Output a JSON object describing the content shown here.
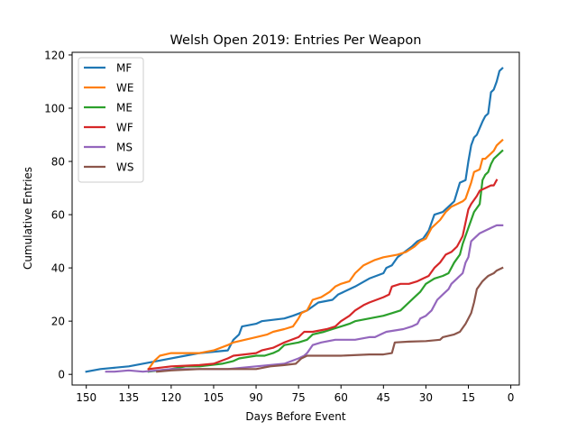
{
  "chart_data": {
    "type": "line",
    "title": "Welsh Open 2019: Entries Per Weapon",
    "xlabel": "Days Before Event",
    "ylabel": "Cumulative Entries",
    "xlim": [
      155,
      -3
    ],
    "ylim": [
      -4,
      121
    ],
    "x_ticks": [
      150,
      135,
      120,
      105,
      90,
      75,
      60,
      45,
      30,
      15,
      0
    ],
    "y_ticks": [
      0,
      20,
      40,
      60,
      80,
      100,
      120
    ],
    "grid": false,
    "legend_position": "top-left",
    "series": [
      {
        "name": "MF",
        "color": "#1f77b4",
        "points": [
          [
            150,
            1
          ],
          [
            145,
            2
          ],
          [
            135,
            3
          ],
          [
            125,
            5
          ],
          [
            115,
            7
          ],
          [
            110,
            8
          ],
          [
            100,
            9
          ],
          [
            98,
            13
          ],
          [
            96,
            15
          ],
          [
            95,
            18
          ],
          [
            90,
            19
          ],
          [
            88,
            20
          ],
          [
            80,
            21
          ],
          [
            77,
            22
          ],
          [
            72,
            24
          ],
          [
            68,
            27
          ],
          [
            63,
            28
          ],
          [
            61,
            30
          ],
          [
            55,
            33
          ],
          [
            50,
            36
          ],
          [
            45,
            38
          ],
          [
            44,
            40
          ],
          [
            42,
            41
          ],
          [
            40,
            44
          ],
          [
            35,
            48
          ],
          [
            33,
            50
          ],
          [
            31,
            51
          ],
          [
            29,
            54
          ],
          [
            27,
            60
          ],
          [
            24,
            61
          ],
          [
            22,
            63
          ],
          [
            20,
            65
          ],
          [
            18,
            72
          ],
          [
            16,
            73
          ],
          [
            15,
            80
          ],
          [
            14,
            86
          ],
          [
            13,
            89
          ],
          [
            12,
            90
          ],
          [
            10,
            95
          ],
          [
            9,
            97
          ],
          [
            8,
            98
          ],
          [
            7,
            106
          ],
          [
            6,
            107
          ],
          [
            5,
            110
          ],
          [
            4,
            114
          ],
          [
            3,
            115
          ]
        ]
      },
      {
        "name": "WE",
        "color": "#ff7f0e",
        "points": [
          [
            128,
            2
          ],
          [
            126,
            5
          ],
          [
            124,
            7
          ],
          [
            120,
            8
          ],
          [
            110,
            8
          ],
          [
            105,
            9
          ],
          [
            100,
            11
          ],
          [
            98,
            12
          ],
          [
            90,
            14
          ],
          [
            86,
            15
          ],
          [
            84,
            16
          ],
          [
            80,
            17
          ],
          [
            77,
            18
          ],
          [
            75,
            21
          ],
          [
            74,
            23
          ],
          [
            72,
            24
          ],
          [
            70,
            28
          ],
          [
            67,
            29
          ],
          [
            64,
            31
          ],
          [
            62,
            33
          ],
          [
            60,
            34
          ],
          [
            57,
            35
          ],
          [
            55,
            38
          ],
          [
            52,
            41
          ],
          [
            48,
            43
          ],
          [
            45,
            44
          ],
          [
            40,
            45
          ],
          [
            37,
            46
          ],
          [
            34,
            48
          ],
          [
            32,
            50
          ],
          [
            30,
            51
          ],
          [
            28,
            55
          ],
          [
            25,
            58
          ],
          [
            23,
            61
          ],
          [
            21,
            63
          ],
          [
            17,
            65
          ],
          [
            16,
            66
          ],
          [
            14,
            72
          ],
          [
            13,
            76
          ],
          [
            11,
            77
          ],
          [
            10,
            81
          ],
          [
            9,
            81
          ],
          [
            7,
            83
          ],
          [
            6,
            84
          ],
          [
            5,
            86
          ],
          [
            3,
            88
          ]
        ]
      },
      {
        "name": "ME",
        "color": "#2ca02c",
        "points": [
          [
            128,
            1
          ],
          [
            120,
            2
          ],
          [
            115,
            3
          ],
          [
            110,
            3
          ],
          [
            102,
            4
          ],
          [
            98,
            5
          ],
          [
            96,
            6
          ],
          [
            90,
            7
          ],
          [
            87,
            7
          ],
          [
            84,
            8
          ],
          [
            82,
            9
          ],
          [
            80,
            11
          ],
          [
            75,
            12
          ],
          [
            72,
            13
          ],
          [
            70,
            15
          ],
          [
            66,
            16
          ],
          [
            63,
            17
          ],
          [
            60,
            18
          ],
          [
            57,
            19
          ],
          [
            55,
            20
          ],
          [
            50,
            21
          ],
          [
            45,
            22
          ],
          [
            42,
            23
          ],
          [
            39,
            24
          ],
          [
            37,
            26
          ],
          [
            34,
            29
          ],
          [
            32,
            31
          ],
          [
            30,
            34
          ],
          [
            27,
            36
          ],
          [
            24,
            37
          ],
          [
            22,
            38
          ],
          [
            20,
            42
          ],
          [
            18,
            45
          ],
          [
            17,
            49
          ],
          [
            15,
            55
          ],
          [
            13,
            61
          ],
          [
            11,
            64
          ],
          [
            10,
            73
          ],
          [
            9,
            75
          ],
          [
            8,
            76
          ],
          [
            7,
            79
          ],
          [
            6,
            81
          ],
          [
            4,
            83
          ],
          [
            3,
            84
          ]
        ]
      },
      {
        "name": "WF",
        "color": "#d62728",
        "points": [
          [
            128,
            2
          ],
          [
            120,
            3
          ],
          [
            110,
            3.5
          ],
          [
            105,
            4
          ],
          [
            100,
            6
          ],
          [
            98,
            7
          ],
          [
            90,
            8
          ],
          [
            88,
            9
          ],
          [
            84,
            10
          ],
          [
            82,
            11
          ],
          [
            80,
            12
          ],
          [
            75,
            14
          ],
          [
            73,
            16
          ],
          [
            70,
            16
          ],
          [
            65,
            17
          ],
          [
            62,
            18
          ],
          [
            60,
            20
          ],
          [
            57,
            22
          ],
          [
            55,
            24
          ],
          [
            52,
            26
          ],
          [
            50,
            27
          ],
          [
            45,
            29
          ],
          [
            43,
            30
          ],
          [
            42,
            33
          ],
          [
            39,
            34
          ],
          [
            36,
            34
          ],
          [
            33,
            35
          ],
          [
            31,
            36
          ],
          [
            29,
            37
          ],
          [
            27,
            40
          ],
          [
            25,
            42
          ],
          [
            23,
            45
          ],
          [
            21,
            46
          ],
          [
            19,
            48
          ],
          [
            18,
            50
          ],
          [
            17,
            52
          ],
          [
            15,
            62
          ],
          [
            14,
            64
          ],
          [
            12,
            67
          ],
          [
            11,
            69
          ],
          [
            9,
            70
          ],
          [
            7,
            71
          ],
          [
            6,
            71
          ],
          [
            5,
            73
          ]
        ]
      },
      {
        "name": "MS",
        "color": "#9467bd",
        "points": [
          [
            143,
            1
          ],
          [
            140,
            1
          ],
          [
            135,
            1.5
          ],
          [
            130,
            1
          ],
          [
            125,
            1.5
          ],
          [
            120,
            2
          ],
          [
            100,
            2
          ],
          [
            90,
            3
          ],
          [
            80,
            4
          ],
          [
            75,
            6
          ],
          [
            73,
            7
          ],
          [
            72,
            8
          ],
          [
            70,
            11
          ],
          [
            67,
            12
          ],
          [
            62,
            13
          ],
          [
            55,
            13
          ],
          [
            50,
            14
          ],
          [
            48,
            14
          ],
          [
            46,
            15
          ],
          [
            44,
            16
          ],
          [
            38,
            17
          ],
          [
            35,
            18
          ],
          [
            33,
            19
          ],
          [
            32,
            21
          ],
          [
            30,
            22
          ],
          [
            28,
            24
          ],
          [
            26,
            28
          ],
          [
            24,
            30
          ],
          [
            22,
            32
          ],
          [
            21,
            34
          ],
          [
            19,
            36
          ],
          [
            17,
            38
          ],
          [
            16,
            42
          ],
          [
            15,
            44
          ],
          [
            14,
            50
          ],
          [
            13,
            51
          ],
          [
            11,
            53
          ],
          [
            9,
            54
          ],
          [
            7,
            55
          ],
          [
            5,
            56
          ],
          [
            3,
            56
          ]
        ]
      },
      {
        "name": "WS",
        "color": "#8c564b",
        "points": [
          [
            125,
            1
          ],
          [
            120,
            1.5
          ],
          [
            110,
            2
          ],
          [
            100,
            2
          ],
          [
            90,
            2
          ],
          [
            85,
            3
          ],
          [
            80,
            3.5
          ],
          [
            76,
            4
          ],
          [
            74,
            6
          ],
          [
            72,
            7
          ],
          [
            65,
            7
          ],
          [
            60,
            7
          ],
          [
            50,
            7.5
          ],
          [
            45,
            7.5
          ],
          [
            42,
            8
          ],
          [
            41,
            12
          ],
          [
            36,
            12.3
          ],
          [
            30,
            12.5
          ],
          [
            25,
            13
          ],
          [
            24,
            14
          ],
          [
            22,
            14.5
          ],
          [
            20,
            15
          ],
          [
            18,
            16
          ],
          [
            16,
            19
          ],
          [
            15,
            21
          ],
          [
            14,
            23
          ],
          [
            13,
            27
          ],
          [
            12,
            32
          ],
          [
            10,
            35
          ],
          [
            9,
            36
          ],
          [
            8,
            37
          ],
          [
            7,
            37.5
          ],
          [
            6,
            38
          ],
          [
            5,
            39
          ],
          [
            3,
            40
          ]
        ]
      }
    ]
  }
}
